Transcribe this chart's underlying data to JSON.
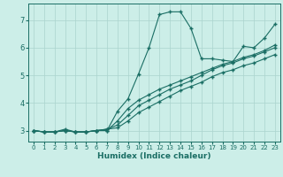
{
  "title": "",
  "xlabel": "Humidex (Indice chaleur)",
  "bg_color": "#cceee8",
  "grid_color": "#aad4ce",
  "line_color": "#1a6e64",
  "xlim": [
    -0.5,
    23.5
  ],
  "ylim": [
    2.6,
    7.6
  ],
  "xticks": [
    0,
    1,
    2,
    3,
    4,
    5,
    6,
    7,
    8,
    9,
    10,
    11,
    12,
    13,
    14,
    15,
    16,
    17,
    18,
    19,
    20,
    21,
    22,
    23
  ],
  "yticks": [
    3,
    4,
    5,
    6,
    7
  ],
  "line1_y": [
    3.0,
    2.95,
    2.95,
    3.05,
    2.95,
    2.95,
    3.0,
    3.0,
    3.7,
    4.15,
    5.05,
    6.0,
    7.2,
    7.3,
    7.3,
    6.7,
    5.6,
    5.6,
    5.55,
    5.5,
    6.05,
    6.0,
    6.35,
    6.85
  ],
  "line2_y": [
    3.0,
    2.95,
    2.95,
    3.0,
    2.95,
    2.95,
    3.0,
    3.0,
    3.35,
    3.8,
    4.1,
    4.3,
    4.5,
    4.65,
    4.8,
    4.95,
    5.1,
    5.25,
    5.4,
    5.5,
    5.65,
    5.75,
    5.9,
    6.1
  ],
  "line3_y": [
    3.0,
    2.95,
    2.95,
    3.0,
    2.95,
    2.95,
    3.0,
    3.05,
    3.2,
    3.55,
    3.9,
    4.1,
    4.3,
    4.5,
    4.65,
    4.8,
    5.0,
    5.2,
    5.35,
    5.45,
    5.6,
    5.7,
    5.85,
    6.0
  ],
  "line4_y": [
    3.0,
    2.95,
    2.95,
    3.0,
    2.95,
    2.95,
    3.0,
    3.05,
    3.1,
    3.35,
    3.65,
    3.85,
    4.05,
    4.25,
    4.45,
    4.6,
    4.75,
    4.95,
    5.1,
    5.2,
    5.35,
    5.45,
    5.6,
    5.75
  ]
}
